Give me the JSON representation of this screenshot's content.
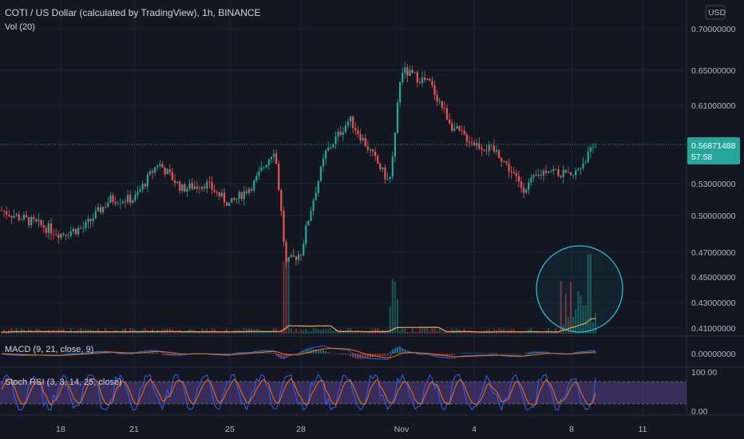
{
  "header": {
    "title": "COTI / US Dollar (calculated by TradingView), 1h, BINANCE",
    "vol_label": "Vol (20)",
    "currency_button": "USD"
  },
  "price_tag": {
    "price": "0.56871488",
    "countdown": "57:58"
  },
  "panes": {
    "macd_label": "MACD (9, 21, close, 9)",
    "macd_axis": "0.00000000",
    "stoch_label": "Stoch RSI (3, 3, 14, 25, close)",
    "stoch_top": "100.00",
    "stoch_bottom": "0.00"
  },
  "colors": {
    "background": "#131722",
    "up": "#26a69a",
    "down": "#ef5350",
    "volume_ma": "#f5a25d",
    "macd_line": "#2962ff",
    "signal_line": "#ff6d00",
    "stoch_k": "#2962ff",
    "stoch_d": "#ff6d00",
    "stoch_band": "#7e57c2",
    "circle": "#26c6da"
  },
  "chart_data": {
    "type": "candlestick",
    "title": "COTI / US Dollar (calculated by TradingView), 1h, BINANCE",
    "y_ticks": [
      "0.70000000",
      "0.65000000",
      "0.61000000",
      "0.53000000",
      "0.50000000",
      "0.47000000",
      "0.45000000",
      "0.43000000",
      "0.41000000"
    ],
    "x_ticks": [
      "18",
      "21",
      "25",
      "28",
      "Nov",
      "4",
      "8",
      "11"
    ],
    "ylim": [
      0.405,
      0.71
    ],
    "y_scale": "log",
    "last_price": 0.56871488,
    "price_path": [
      {
        "x": "16 Oct",
        "close": 0.505
      },
      {
        "x": "18 Oct",
        "close": 0.485
      },
      {
        "x": "19 Oct",
        "close": 0.49
      },
      {
        "x": "20 Oct",
        "close": 0.515
      },
      {
        "x": "21 Oct",
        "close": 0.515
      },
      {
        "x": "22 Oct",
        "close": 0.55
      },
      {
        "x": "23 Oct",
        "close": 0.525
      },
      {
        "x": "24 Oct",
        "close": 0.53
      },
      {
        "x": "25 Oct",
        "close": 0.51
      },
      {
        "x": "26 Oct",
        "close": 0.53
      },
      {
        "x": "27 Oct",
        "close": 0.565
      },
      {
        "x": "27 Oct 12h",
        "close": 0.46
      },
      {
        "x": "28 Oct",
        "close": 0.47
      },
      {
        "x": "29 Oct",
        "close": 0.56
      },
      {
        "x": "30 Oct",
        "close": 0.595
      },
      {
        "x": "31 Oct",
        "close": 0.53
      },
      {
        "x": "1 Nov",
        "close": 0.65
      },
      {
        "x": "2 Nov",
        "close": 0.635
      },
      {
        "x": "3 Nov",
        "close": 0.585
      },
      {
        "x": "4 Nov",
        "close": 0.57
      },
      {
        "x": "5 Nov",
        "close": 0.56
      },
      {
        "x": "6 Nov",
        "close": 0.525
      },
      {
        "x": "7 Nov",
        "close": 0.545
      },
      {
        "x": "8 Nov",
        "close": 0.535
      },
      {
        "x": "9 Nov",
        "close": 0.569
      }
    ],
    "volume_note": "volume spikes near 28 Oct, 1 Nov and 8–9 Nov (highlighted by circle)"
  }
}
